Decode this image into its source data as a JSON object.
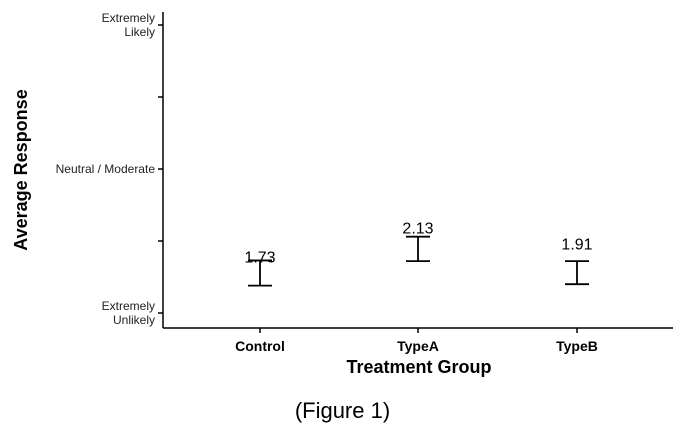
{
  "chart_data": {
    "type": "errorbar",
    "categories": [
      "Control",
      "TypeA",
      "TypeB"
    ],
    "values": [
      1.73,
      2.13,
      1.91
    ],
    "errors": [
      {
        "low": 1.38,
        "high": 1.73
      },
      {
        "low": 1.72,
        "high": 2.06
      },
      {
        "low": 1.4,
        "high": 1.72
      }
    ],
    "data_labels": [
      "1.73",
      "2.13",
      "1.91"
    ],
    "xlabel": "Treatment Group",
    "ylabel": "Average Response",
    "ylim": [
      1,
      5
    ],
    "y_ticks": [
      {
        "value": 1,
        "lines": [
          "Extremely",
          "Unlikely"
        ]
      },
      {
        "value": 2,
        "lines": []
      },
      {
        "value": 3,
        "lines": [
          "Neutral / Moderate"
        ]
      },
      {
        "value": 4,
        "lines": []
      },
      {
        "value": 5,
        "lines": [
          "Extremely",
          "Likely"
        ]
      }
    ],
    "grid": false,
    "legend": "none"
  },
  "caption": "(Figure 1)"
}
